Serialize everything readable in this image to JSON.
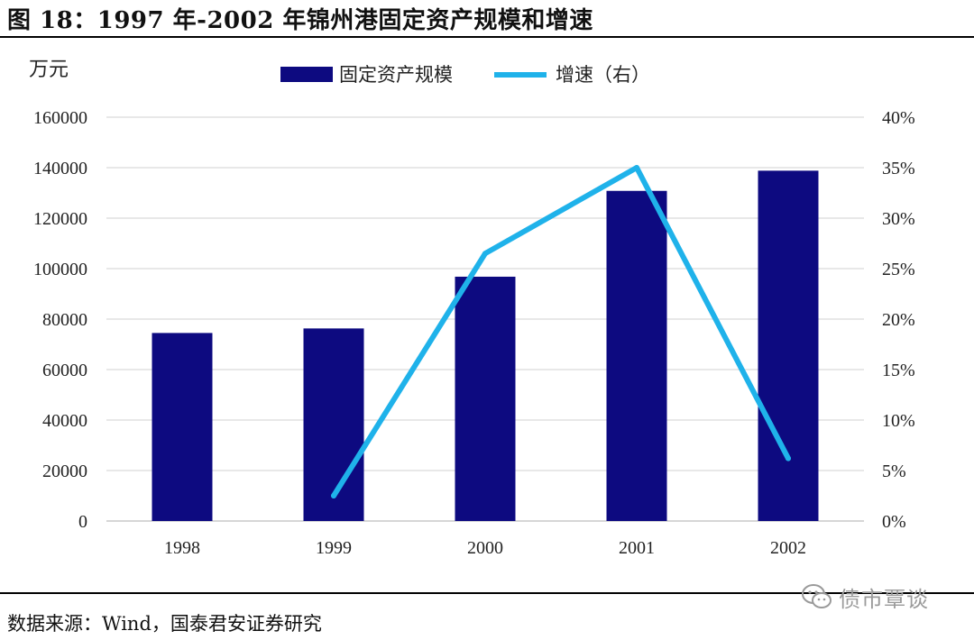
{
  "header": {
    "title": "图 18：1997 年-2002 年锦州港固定资产规模和增速"
  },
  "footer": {
    "source": "数据来源：Wind，国泰君安证券研究",
    "watermark": "债市覃谈",
    "watermark_icon": "wechat-icon"
  },
  "chart_data": {
    "type": "bar",
    "categories": [
      "1998",
      "1999",
      "2000",
      "2001",
      "2002"
    ],
    "y_left": {
      "unit_label": "万元",
      "ticks": [
        "0",
        "20000",
        "40000",
        "60000",
        "80000",
        "100000",
        "120000",
        "140000",
        "160000"
      ],
      "ylim": [
        0,
        160000
      ]
    },
    "y_right": {
      "ticks": [
        "0%",
        "5%",
        "10%",
        "15%",
        "20%",
        "25%",
        "30%",
        "35%",
        "40%"
      ],
      "ylim": [
        0,
        0.4
      ]
    },
    "series": [
      {
        "name": "固定资产规模",
        "type": "bar",
        "axis": "left",
        "color": "#0d0a80",
        "values": [
          74500,
          76300,
          96800,
          130800,
          138800
        ]
      },
      {
        "name": "增速（右）",
        "type": "line",
        "axis": "right",
        "color": "#1fb2ea",
        "values": [
          null,
          0.025,
          0.265,
          0.35,
          0.062
        ]
      }
    ],
    "grid": true,
    "legend_position": "top-center"
  }
}
